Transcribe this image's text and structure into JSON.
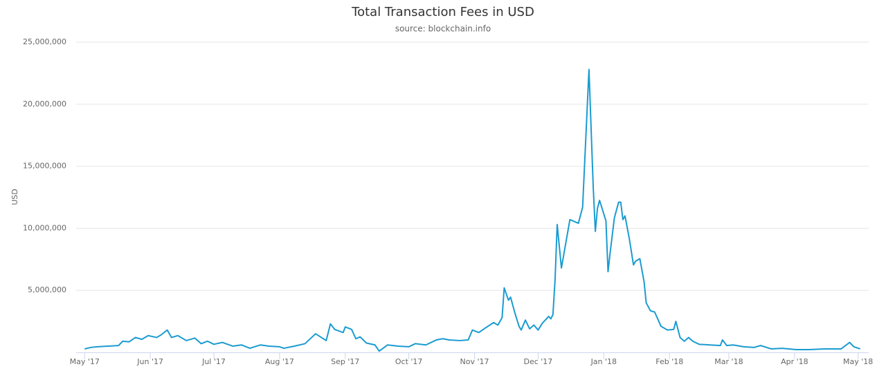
{
  "chart_data": {
    "type": "line",
    "title": "Total Transaction Fees in USD",
    "subtitle": "source: blockchain.info",
    "y_label": "USD",
    "x": [
      0,
      3,
      6,
      11,
      16,
      18,
      21,
      24,
      27,
      30,
      34,
      36,
      39,
      41,
      44,
      48,
      52,
      55,
      58,
      61,
      65,
      70,
      74,
      78,
      83,
      87,
      92,
      94,
      99,
      104,
      109,
      114,
      116,
      118,
      122,
      123,
      126,
      128,
      130,
      133,
      137,
      139,
      143,
      148,
      153,
      156,
      161,
      166,
      169,
      172,
      177,
      181,
      183,
      186,
      189,
      193,
      195,
      197,
      198,
      200,
      201,
      203,
      205,
      206,
      208,
      210,
      212,
      214,
      216,
      219,
      220,
      221,
      222,
      223,
      225,
      229,
      233,
      235,
      238,
      240,
      241,
      242,
      243,
      245,
      246,
      247,
      248,
      250,
      252,
      253,
      254,
      255,
      257,
      259,
      260,
      262,
      264,
      265,
      267,
      269,
      272,
      275,
      278,
      279,
      281,
      283,
      285,
      287,
      290,
      295,
      300,
      301,
      303,
      306,
      311,
      316,
      319,
      324,
      329,
      336,
      342,
      349,
      357,
      361,
      363,
      366
    ],
    "series": [
      {
        "name": "Total Transaction Fees",
        "color": "#1a9bd0",
        "values": [
          280000,
          400000,
          450000,
          500000,
          550000,
          900000,
          850000,
          1200000,
          1050000,
          1350000,
          1200000,
          1400000,
          1800000,
          1200000,
          1350000,
          950000,
          1150000,
          700000,
          900000,
          650000,
          800000,
          500000,
          600000,
          330000,
          600000,
          500000,
          450000,
          330000,
          500000,
          700000,
          1500000,
          950000,
          2300000,
          1850000,
          1600000,
          2050000,
          1850000,
          1100000,
          1250000,
          750000,
          600000,
          100000,
          600000,
          500000,
          450000,
          700000,
          600000,
          1000000,
          1100000,
          1000000,
          950000,
          1000000,
          1800000,
          1600000,
          1950000,
          2400000,
          2200000,
          2800000,
          5200000,
          4200000,
          4450000,
          3200000,
          2100000,
          1800000,
          2600000,
          1900000,
          2200000,
          1800000,
          2350000,
          2900000,
          2700000,
          3050000,
          5850000,
          10300000,
          6800000,
          10700000,
          10400000,
          11700000,
          22800000,
          13350000,
          9750000,
          11600000,
          12250000,
          11150000,
          10600000,
          6500000,
          8050000,
          10850000,
          12100000,
          12100000,
          10700000,
          11000000,
          9200000,
          7050000,
          7350000,
          7550000,
          5700000,
          4000000,
          3350000,
          3250000,
          2100000,
          1800000,
          1850000,
          2500000,
          1200000,
          900000,
          1200000,
          900000,
          650000,
          600000,
          550000,
          1000000,
          550000,
          600000,
          450000,
          400000,
          550000,
          280000,
          330000,
          220000,
          220000,
          280000,
          280000,
          800000,
          450000,
          280000
        ]
      }
    ],
    "xlim": [
      -4,
      370
    ],
    "xticks": [
      {
        "value": 0,
        "label": "May '17"
      },
      {
        "value": 31,
        "label": "Jun '17"
      },
      {
        "value": 61,
        "label": "Jul '17"
      },
      {
        "value": 92,
        "label": "Aug '17"
      },
      {
        "value": 123,
        "label": "Sep '17"
      },
      {
        "value": 153,
        "label": "Oct '17"
      },
      {
        "value": 184,
        "label": "Nov '17"
      },
      {
        "value": 214,
        "label": "Dec '17"
      },
      {
        "value": 245,
        "label": "Jan '18"
      },
      {
        "value": 276,
        "label": "Feb '18"
      },
      {
        "value": 304,
        "label": "Mar '18"
      },
      {
        "value": 335,
        "label": "Apr '18"
      },
      {
        "value": 365,
        "label": "May '18"
      }
    ],
    "ylim": [
      0,
      25000000
    ],
    "yticks": [
      {
        "value": 5000000,
        "label": "5,000,000"
      },
      {
        "value": 10000000,
        "label": "10,000,000"
      },
      {
        "value": 15000000,
        "label": "15,000,000"
      },
      {
        "value": 20000000,
        "label": "20,000,000"
      },
      {
        "value": 25000000,
        "label": "25,000,000"
      }
    ],
    "grid": true
  }
}
